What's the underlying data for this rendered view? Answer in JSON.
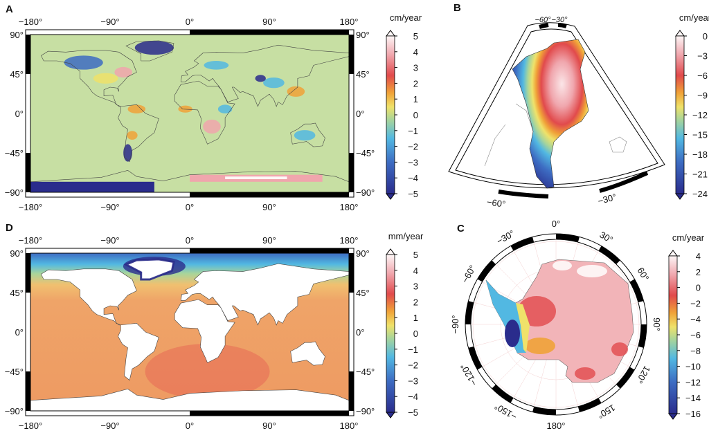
{
  "colors": {
    "dark_blue": "#2a2c8c",
    "blue": "#3d6cc2",
    "cyan": "#52b8e2",
    "green": "#a9d59a",
    "yellow": "#efe26a",
    "orange": "#f0a238",
    "red": "#e14a4c",
    "pink": "#f0a6ad",
    "white": "#fdf6f6",
    "land_bg": "#c7dfa3",
    "ocean_orange": "#efa468"
  },
  "panels": {
    "A": {
      "label": "A",
      "lon_ticks": [
        "−180°",
        "−90°",
        "0°",
        "90°",
        "180°"
      ],
      "lat_ticks": [
        "90°",
        "45°",
        "0°",
        "−45°",
        "−90°"
      ],
      "colorbar": {
        "unit": "cm/year",
        "ticks": [
          "5",
          "4",
          "3",
          "2",
          "1",
          "0",
          "−1",
          "−2",
          "−3",
          "−4",
          "−5"
        ]
      }
    },
    "B": {
      "label": "B",
      "top_ticks": [
        "−60°",
        "−30°"
      ],
      "bottom_ticks": [
        "−60°",
        "−30°"
      ],
      "colorbar": {
        "unit": "cm/year",
        "ticks": [
          "0",
          "−3",
          "−6",
          "−9",
          "−12",
          "−15",
          "−18",
          "−21",
          "−24"
        ]
      }
    },
    "C": {
      "label": "C",
      "angle_ticks": [
        {
          "text": "0°",
          "deg": 0
        },
        {
          "text": "30°",
          "deg": 30
        },
        {
          "text": "60°",
          "deg": 60
        },
        {
          "text": "90°",
          "deg": 90
        },
        {
          "text": "120°",
          "deg": 120
        },
        {
          "text": "150°",
          "deg": 150
        },
        {
          "text": "180°",
          "deg": 180
        },
        {
          "text": "−150°",
          "deg": -150
        },
        {
          "text": "−120°",
          "deg": -120
        },
        {
          "text": "−90°",
          "deg": -90
        },
        {
          "text": "−60°",
          "deg": -60
        },
        {
          "text": "−30°",
          "deg": -30
        }
      ],
      "colorbar": {
        "unit": "cm/year",
        "ticks": [
          "4",
          "2",
          "0",
          "−2",
          "−4",
          "−6",
          "−8",
          "−10",
          "−12",
          "−14",
          "−16"
        ]
      }
    },
    "D": {
      "label": "D",
      "lon_ticks": [
        "−180°",
        "−90°",
        "0°",
        "90°",
        "180°"
      ],
      "lat_ticks": [
        "90°",
        "45°",
        "0°",
        "−45°",
        "−90°"
      ],
      "colorbar": {
        "unit": "mm/year",
        "ticks": [
          "5",
          "4",
          "3",
          "2",
          "1",
          "0",
          "−1",
          "−2",
          "−3",
          "−4",
          "−5"
        ]
      }
    }
  }
}
